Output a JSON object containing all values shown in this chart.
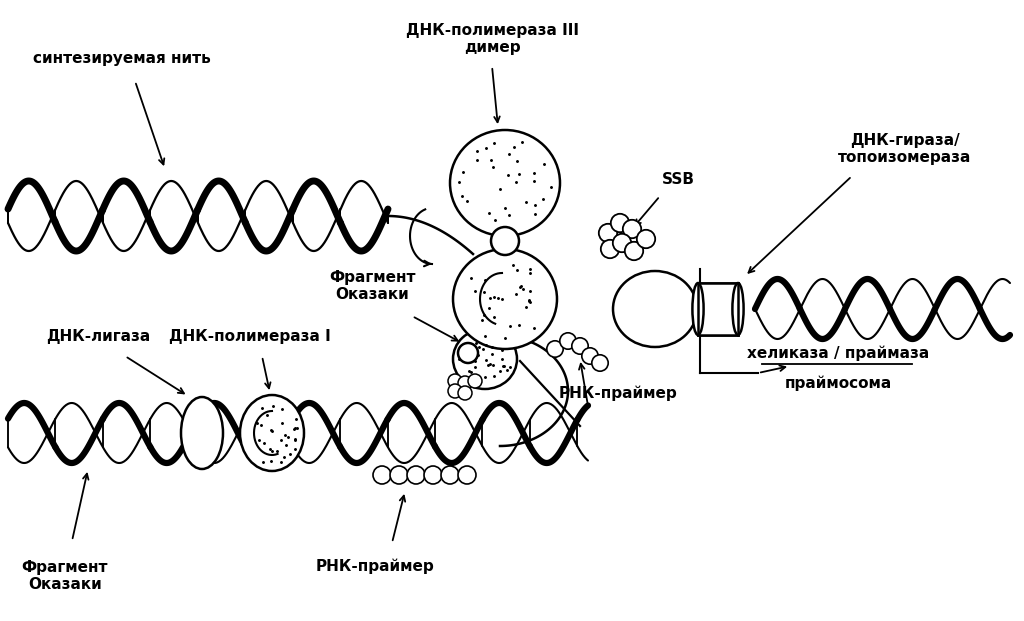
{
  "bg_color": "#ffffff",
  "line_color": "#000000",
  "labels": {
    "sintez": "синтезируемая нить",
    "dnk_pol3": "ДНК-полимераза III\nдимер",
    "ssb": "SSB",
    "dnk_giraza": "ДНК-гираза/\nтопоизомераза",
    "fragment_ok1": "Фрагмент\nОказаки",
    "fragment_ok2": "Фрагмент\nОказаки",
    "dnk_ligaza": "ДНК-лигаза",
    "dnk_pol1": "ДНК-полимераза I",
    "rnk_primer1": "РНК-праймер",
    "rnk_primer2": "РНК-праймер",
    "helicase": "хеликаза / праймаза",
    "primosoma": "праймосома"
  },
  "font_size": 11
}
